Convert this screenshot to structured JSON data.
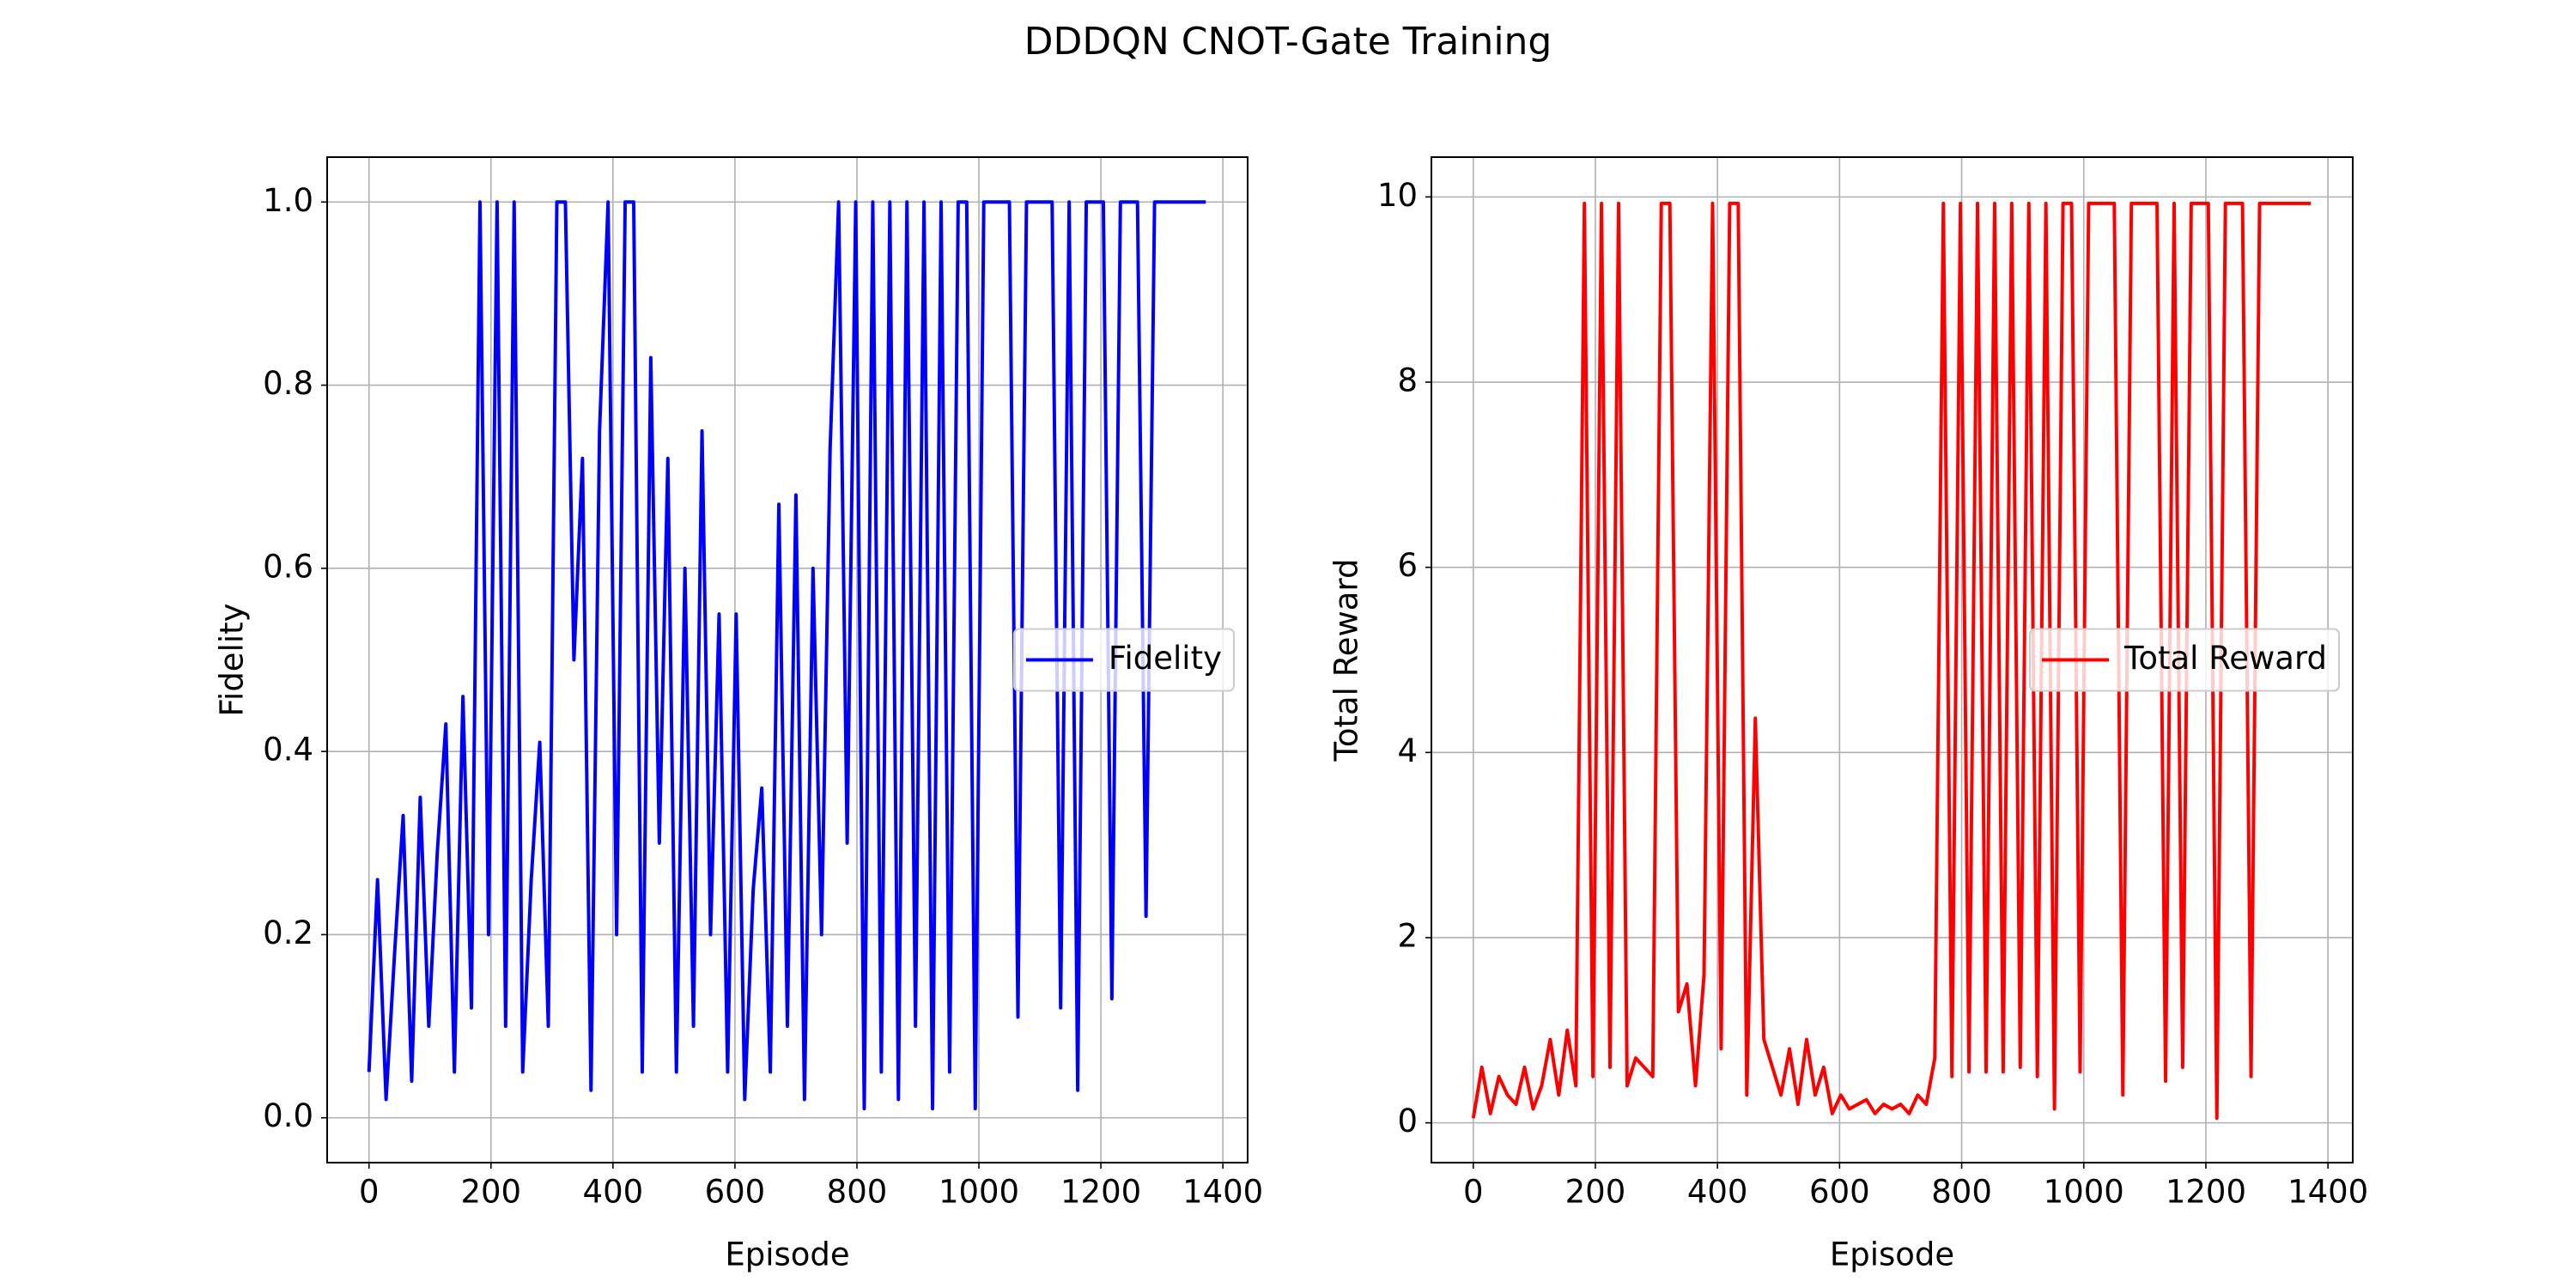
{
  "title": "DDDQN CNOT-Gate Training",
  "chart_data": [
    {
      "type": "line",
      "xlabel": "Episode",
      "ylabel": "Fidelity",
      "x": [
        0,
        14,
        28,
        42,
        56,
        70,
        84,
        98,
        112,
        126,
        140,
        154,
        168,
        182,
        196,
        210,
        224,
        238,
        252,
        266,
        280,
        294,
        308,
        322,
        336,
        350,
        364,
        378,
        392,
        406,
        420,
        434,
        448,
        462,
        476,
        490,
        504,
        518,
        532,
        546,
        560,
        574,
        588,
        602,
        616,
        630,
        644,
        658,
        672,
        686,
        700,
        714,
        728,
        742,
        756,
        770,
        784,
        798,
        812,
        826,
        840,
        854,
        868,
        882,
        896,
        910,
        924,
        938,
        952,
        966,
        980,
        994,
        1008,
        1022,
        1036,
        1050,
        1064,
        1078,
        1092,
        1106,
        1120,
        1134,
        1148,
        1162,
        1176,
        1190,
        1204,
        1218,
        1232,
        1246,
        1260,
        1274,
        1288,
        1302,
        1316,
        1330,
        1344,
        1358,
        1372
      ],
      "series": [
        {
          "name": "Fidelity",
          "color": "#0000ff",
          "values": [
            0.05,
            0.26,
            0.02,
            0.18,
            0.33,
            0.04,
            0.35,
            0.1,
            0.29,
            0.43,
            0.05,
            0.46,
            0.12,
            1.0,
            0.2,
            1.0,
            0.1,
            1.0,
            0.05,
            0.26,
            0.41,
            0.1,
            1.0,
            1.0,
            0.5,
            0.72,
            0.03,
            0.75,
            1.0,
            0.2,
            1.0,
            1.0,
            0.05,
            0.83,
            0.3,
            0.72,
            0.05,
            0.6,
            0.1,
            0.75,
            0.2,
            0.55,
            0.05,
            0.55,
            0.02,
            0.25,
            0.36,
            0.05,
            0.67,
            0.1,
            0.68,
            0.02,
            0.6,
            0.2,
            0.73,
            1.0,
            0.3,
            1.0,
            0.01,
            1.0,
            0.05,
            1.0,
            0.02,
            1.0,
            0.1,
            1.0,
            0.01,
            1.0,
            0.05,
            1.0,
            1.0,
            0.01,
            1.0,
            1.0,
            1.0,
            1.0,
            0.11,
            1.0,
            1.0,
            1.0,
            1.0,
            0.12,
            1.0,
            0.03,
            1.0,
            1.0,
            1.0,
            0.13,
            1.0,
            1.0,
            1.0,
            0.22,
            1.0,
            1.0,
            1.0,
            1.0,
            1.0,
            1.0,
            1.0
          ]
        }
      ],
      "xlim": [
        -68.6,
        1440.6
      ],
      "ylim": [
        -0.049,
        1.049
      ],
      "xticks": [
        0,
        200,
        400,
        600,
        800,
        1000,
        1200,
        1400
      ],
      "yticks": [
        {
          "value": 0,
          "label": "0.0"
        },
        0.2,
        0.4,
        0.6,
        0.8,
        {
          "value": 1,
          "label": "1.0"
        }
      ],
      "grid": true,
      "legend": "center right"
    },
    {
      "type": "line",
      "xlabel": "Episode",
      "ylabel": "Total Reward",
      "x": [
        0,
        14,
        28,
        42,
        56,
        70,
        84,
        98,
        112,
        126,
        140,
        154,
        168,
        182,
        196,
        210,
        224,
        238,
        252,
        266,
        280,
        294,
        308,
        322,
        336,
        350,
        364,
        378,
        392,
        406,
        420,
        434,
        448,
        462,
        476,
        490,
        504,
        518,
        532,
        546,
        560,
        574,
        588,
        602,
        616,
        630,
        644,
        658,
        672,
        686,
        700,
        714,
        728,
        742,
        756,
        770,
        784,
        798,
        812,
        826,
        840,
        854,
        868,
        882,
        896,
        910,
        924,
        938,
        952,
        966,
        980,
        994,
        1008,
        1022,
        1036,
        1050,
        1064,
        1078,
        1092,
        1106,
        1120,
        1134,
        1148,
        1162,
        1176,
        1190,
        1204,
        1218,
        1232,
        1246,
        1260,
        1274,
        1288,
        1302,
        1316,
        1330,
        1344,
        1358,
        1372
      ],
      "series": [
        {
          "name": "Total Reward",
          "color": "#ff0000",
          "values": [
            0.05,
            0.6,
            0.1,
            0.5,
            0.3,
            0.2,
            0.6,
            0.15,
            0.4,
            0.9,
            0.3,
            1.0,
            0.4,
            9.93,
            0.5,
            9.93,
            0.6,
            9.93,
            0.4,
            0.7,
            0.6,
            0.5,
            9.93,
            9.93,
            1.2,
            1.5,
            0.4,
            1.6,
            9.93,
            0.8,
            9.93,
            9.93,
            0.3,
            4.37,
            0.9,
            0.6,
            0.3,
            0.8,
            0.2,
            0.9,
            0.3,
            0.6,
            0.1,
            0.3,
            0.15,
            0.2,
            0.25,
            0.1,
            0.2,
            0.15,
            0.2,
            0.1,
            0.3,
            0.2,
            0.7,
            9.93,
            0.5,
            9.93,
            0.55,
            9.93,
            0.55,
            9.93,
            0.55,
            9.93,
            0.6,
            9.93,
            0.5,
            9.93,
            0.15,
            9.93,
            9.93,
            0.55,
            9.93,
            9.93,
            9.93,
            9.93,
            0.3,
            9.93,
            9.93,
            9.93,
            9.93,
            0.45,
            9.93,
            0.6,
            9.93,
            9.93,
            9.93,
            0.05,
            9.93,
            9.93,
            9.93,
            0.5,
            9.93,
            9.93,
            9.93,
            9.93,
            9.93,
            9.93,
            9.93
          ]
        }
      ],
      "xlim": [
        -68.6,
        1440.6
      ],
      "ylim": [
        -0.43,
        10.43
      ],
      "xticks": [
        0,
        200,
        400,
        600,
        800,
        1000,
        1200,
        1400
      ],
      "yticks": [
        0,
        2,
        4,
        6,
        8,
        10
      ],
      "grid": true,
      "legend": "center right"
    }
  ]
}
